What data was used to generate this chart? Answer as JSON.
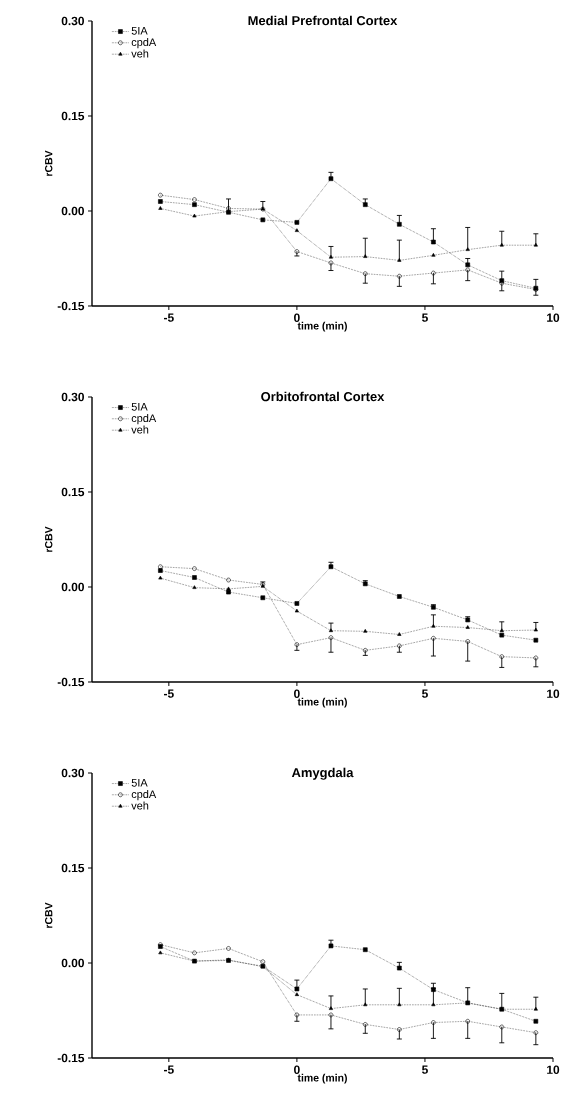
{
  "chart_data": [
    {
      "type": "line",
      "title": "Medial Prefrontal Cortex",
      "xlabel": "time (min)",
      "ylabel": "rCBV",
      "legend": "top left",
      "line_style": "dotted",
      "grid": false,
      "xlim": [
        -8,
        10
      ],
      "ylim": [
        -0.15,
        0.3
      ],
      "xticks": [
        -5,
        0,
        5,
        10
      ],
      "yticks": [
        {
          "value": -0.15,
          "label": "-0.15"
        },
        {
          "value": 0,
          "label": "0.00"
        },
        {
          "value": 0.15,
          "label": "0.15"
        },
        {
          "value": 0.3,
          "label": "0.30"
        }
      ],
      "x": [
        -5.33,
        -4,
        -2.67,
        -1.33,
        0,
        1.33,
        2.67,
        4,
        5.33,
        6.67,
        8,
        9.33
      ],
      "series": [
        {
          "name": "5IA",
          "color": "#000000",
          "marker": "square",
          "values": [
            0.015,
            0.01,
            -0.002,
            -0.014,
            -0.018,
            0.051,
            0.01,
            -0.021,
            -0.049,
            -0.085,
            -0.11,
            -0.122
          ],
          "errors": [
            null,
            null,
            null,
            null,
            null,
            [
              0.051,
              0.061
            ],
            [
              0.01,
              0.019
            ],
            [
              -0.021,
              -0.007
            ],
            [
              -0.049,
              -0.028
            ],
            [
              -0.085,
              -0.075
            ],
            [
              -0.11,
              -0.095
            ],
            [
              -0.122,
              -0.108
            ]
          ]
        },
        {
          "name": "cpdA",
          "color": "#000000",
          "marker": "circle",
          "values": [
            0.025,
            0.018,
            0.004,
            0.003,
            -0.064,
            -0.082,
            -0.099,
            -0.103,
            -0.098,
            -0.093,
            -0.114,
            -0.124
          ],
          "errors": [
            null,
            null,
            null,
            null,
            [
              -0.071,
              -0.064
            ],
            [
              -0.094,
              -0.082
            ],
            [
              -0.114,
              -0.099
            ],
            [
              -0.119,
              -0.103
            ],
            [
              -0.115,
              -0.098
            ],
            [
              -0.11,
              -0.093
            ],
            [
              -0.126,
              -0.114
            ],
            [
              -0.133,
              -0.124
            ]
          ]
        },
        {
          "name": "veh",
          "color": "#000000",
          "marker": "triangle",
          "values": [
            0.004,
            -0.008,
            -0.001,
            0.003,
            -0.031,
            -0.073,
            -0.072,
            -0.078,
            -0.07,
            -0.061,
            -0.054,
            -0.054
          ],
          "errors": [
            null,
            null,
            [
              -0.001,
              0.019
            ],
            [
              0.003,
              0.015
            ],
            null,
            [
              -0.073,
              -0.056
            ],
            [
              -0.072,
              -0.043
            ],
            [
              -0.078,
              -0.046
            ],
            null,
            [
              -0.061,
              -0.026
            ],
            [
              -0.054,
              -0.032
            ],
            [
              -0.054,
              -0.036
            ]
          ]
        }
      ]
    },
    {
      "type": "line",
      "title": "Orbitofrontal Cortex",
      "xlabel": "time (min)",
      "ylabel": "rCBV",
      "legend": "top left",
      "line_style": "dotted",
      "grid": false,
      "xlim": [
        -8,
        10
      ],
      "ylim": [
        -0.15,
        0.3
      ],
      "xticks": [
        -5,
        0,
        5,
        10
      ],
      "yticks": [
        {
          "value": -0.15,
          "label": "-0.15"
        },
        {
          "value": 0,
          "label": "0.00"
        },
        {
          "value": 0.15,
          "label": "0.15"
        },
        {
          "value": 0.3,
          "label": "0.30"
        }
      ],
      "x": [
        -5.33,
        -4,
        -2.67,
        -1.33,
        0,
        1.33,
        2.67,
        4,
        5.33,
        6.67,
        8,
        9.33
      ],
      "series": [
        {
          "name": "5IA",
          "color": "#000000",
          "marker": "square",
          "values": [
            0.026,
            0.015,
            -0.008,
            -0.017,
            -0.026,
            0.032,
            0.005,
            -0.015,
            -0.032,
            -0.052,
            -0.076,
            -0.084
          ],
          "errors": [
            null,
            null,
            null,
            null,
            null,
            [
              0.032,
              0.039
            ],
            [
              0.005,
              0.01
            ],
            null,
            [
              -0.032,
              -0.028
            ],
            [
              -0.052,
              -0.047
            ],
            null,
            null
          ]
        },
        {
          "name": "cpdA",
          "color": "#000000",
          "marker": "circle",
          "values": [
            0.032,
            0.029,
            0.011,
            0.004,
            -0.091,
            -0.08,
            -0.1,
            -0.093,
            -0.081,
            -0.086,
            -0.11,
            -0.112
          ],
          "errors": [
            null,
            null,
            null,
            null,
            [
              -0.1,
              -0.091
            ],
            [
              -0.103,
              -0.08
            ],
            [
              -0.108,
              -0.1
            ],
            [
              -0.103,
              -0.093
            ],
            [
              -0.109,
              -0.081
            ],
            [
              -0.117,
              -0.086
            ],
            [
              -0.127,
              -0.11
            ],
            [
              -0.126,
              -0.112
            ]
          ]
        },
        {
          "name": "veh",
          "color": "#000000",
          "marker": "triangle",
          "values": [
            0.014,
            -0.001,
            -0.003,
            0.001,
            -0.038,
            -0.069,
            -0.07,
            -0.075,
            -0.062,
            -0.064,
            -0.069,
            -0.068
          ],
          "errors": [
            null,
            null,
            null,
            [
              0.001,
              0.008
            ],
            null,
            [
              -0.069,
              -0.057
            ],
            null,
            null,
            [
              -0.062,
              -0.044
            ],
            null,
            [
              -0.069,
              -0.055
            ],
            [
              -0.068,
              -0.056
            ]
          ]
        }
      ]
    },
    {
      "type": "line",
      "title": "Amygdala",
      "xlabel": "time (min)",
      "ylabel": "rCBV",
      "legend": "top left",
      "line_style": "dotted",
      "grid": false,
      "xlim": [
        -8,
        10
      ],
      "ylim": [
        -0.15,
        0.3
      ],
      "xticks": [
        -5,
        0,
        5,
        10
      ],
      "yticks": [
        {
          "value": -0.15,
          "label": "-0.15"
        },
        {
          "value": 0,
          "label": "0.00"
        },
        {
          "value": 0.15,
          "label": "0.15"
        },
        {
          "value": 0.3,
          "label": "0.30"
        }
      ],
      "x": [
        -5.33,
        -4,
        -2.67,
        -1.33,
        0,
        1.33,
        2.67,
        4,
        5.33,
        6.67,
        8,
        9.33
      ],
      "series": [
        {
          "name": "5IA",
          "color": "#000000",
          "marker": "square",
          "values": [
            0.026,
            0.003,
            0.004,
            -0.005,
            -0.041,
            0.027,
            0.021,
            -0.008,
            -0.042,
            -0.063,
            -0.073,
            -0.092
          ],
          "errors": [
            null,
            null,
            null,
            null,
            [
              -0.041,
              -0.027
            ],
            [
              0.027,
              0.036
            ],
            null,
            [
              -0.008,
              0.001
            ],
            [
              -0.042,
              -0.032
            ],
            null,
            null,
            null
          ]
        },
        {
          "name": "cpdA",
          "color": "#000000",
          "marker": "circle",
          "values": [
            0.029,
            0.016,
            0.023,
            0.002,
            -0.082,
            -0.082,
            -0.097,
            -0.105,
            -0.094,
            -0.092,
            -0.101,
            -0.11
          ],
          "errors": [
            null,
            null,
            null,
            null,
            [
              -0.092,
              -0.082
            ],
            [
              -0.104,
              -0.082
            ],
            [
              -0.111,
              -0.097
            ],
            [
              -0.12,
              -0.105
            ],
            [
              -0.119,
              -0.094
            ],
            [
              -0.119,
              -0.092
            ],
            [
              -0.126,
              -0.101
            ],
            [
              -0.129,
              -0.11
            ]
          ]
        },
        {
          "name": "veh",
          "color": "#000000",
          "marker": "triangle",
          "values": [
            0.016,
            0.003,
            0.005,
            -0.006,
            -0.05,
            -0.072,
            -0.066,
            -0.066,
            -0.066,
            -0.063,
            -0.073,
            -0.073
          ],
          "errors": [
            null,
            null,
            null,
            null,
            null,
            [
              -0.072,
              -0.052
            ],
            [
              -0.066,
              -0.041
            ],
            [
              -0.066,
              -0.04
            ],
            [
              -0.066,
              -0.04
            ],
            [
              -0.063,
              -0.039
            ],
            [
              -0.073,
              -0.048
            ],
            [
              -0.073,
              -0.054
            ]
          ]
        }
      ]
    }
  ]
}
